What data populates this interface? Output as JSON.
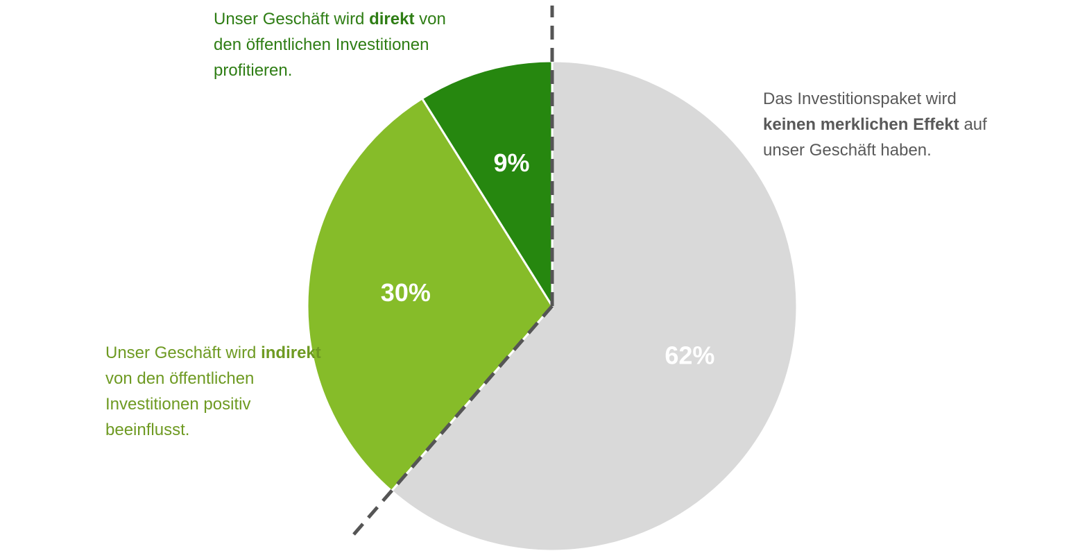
{
  "chart_data": {
    "type": "pie",
    "values": [
      62,
      30,
      9
    ],
    "value_labels": [
      "62%",
      "30%",
      "9%"
    ],
    "colors": [
      "#d9d9d9",
      "#86bc29",
      "#26870f"
    ],
    "annotations": [
      {
        "color": "#595959",
        "lines": [
          [
            {
              "text": "Das Investitionspaket wird"
            }
          ],
          [
            {
              "text": "keinen merklichen Effekt",
              "bold": true
            },
            {
              "text": " auf"
            }
          ],
          [
            {
              "text": "unser Geschäft haben."
            }
          ]
        ]
      },
      {
        "color": "#6e9a22",
        "lines": [
          [
            {
              "text": "Unser Geschäft wird "
            },
            {
              "text": "indirekt",
              "bold": true
            }
          ],
          [
            {
              "text": "von den öffentlichen"
            }
          ],
          [
            {
              "text": "Investitionen positiv"
            }
          ],
          [
            {
              "text": "beeinflusst."
            }
          ]
        ]
      },
      {
        "color": "#2e7d14",
        "lines": [
          [
            {
              "text": "Unser Geschäft wird "
            },
            {
              "text": "direkt",
              "bold": true
            },
            {
              "text": " von"
            }
          ],
          [
            {
              "text": "den öffentlichen Investitionen"
            }
          ],
          [
            {
              "text": "profitieren."
            }
          ]
        ]
      }
    ]
  }
}
